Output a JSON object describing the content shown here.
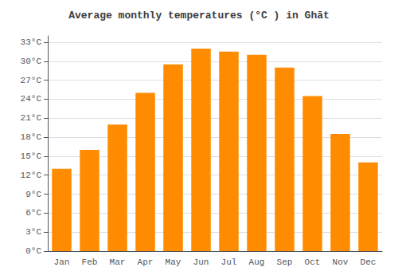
{
  "chart_data": {
    "type": "bar",
    "title": "Average monthly temperatures (°C ) in Ghāt",
    "categories": [
      "Jan",
      "Feb",
      "Mar",
      "Apr",
      "May",
      "Jun",
      "Jul",
      "Aug",
      "Sep",
      "Oct",
      "Nov",
      "Dec"
    ],
    "values": [
      13,
      16,
      20,
      25,
      29.5,
      32,
      31.5,
      31,
      29,
      24.5,
      18.5,
      14
    ],
    "color": "#FF8C00",
    "ylim": [
      0,
      34
    ],
    "yticks": [
      {
        "value": 0,
        "label": "0°C"
      },
      {
        "value": 3,
        "label": "3°C"
      },
      {
        "value": 6,
        "label": "6°C"
      },
      {
        "value": 9,
        "label": "9°C"
      },
      {
        "value": 12,
        "label": "12°C"
      },
      {
        "value": 15,
        "label": "15°C"
      },
      {
        "value": 18,
        "label": "18°C"
      },
      {
        "value": 21,
        "label": "21°C"
      },
      {
        "value": 24,
        "label": "24°C"
      },
      {
        "value": 27,
        "label": "27°C"
      },
      {
        "value": 30,
        "label": "30°C"
      },
      {
        "value": 33,
        "label": "33°C"
      }
    ],
    "grid": true
  }
}
